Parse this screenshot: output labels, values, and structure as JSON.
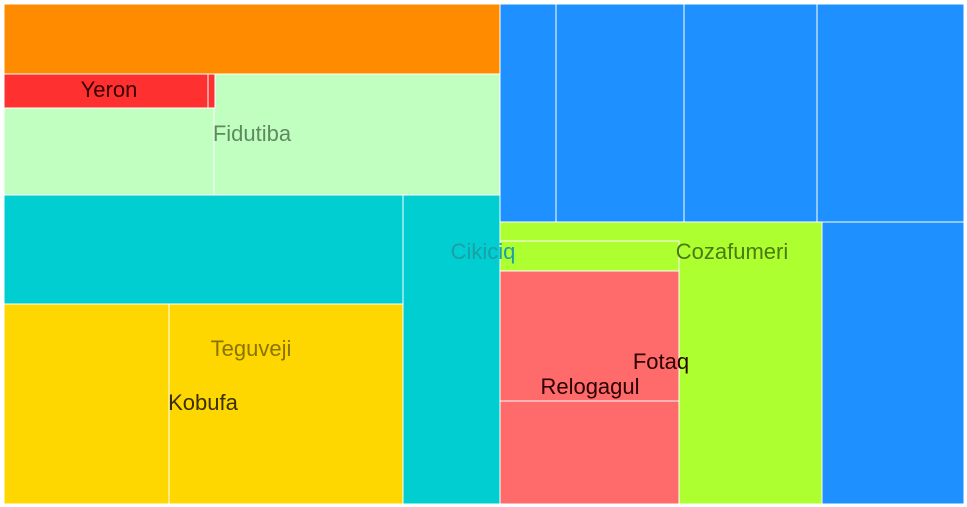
{
  "chart_data": {
    "type": "treemap",
    "groups": [
      {
        "label": "",
        "color": "#ff8c00",
        "value": 34,
        "children": []
      },
      {
        "label": "Fidutiba",
        "color": "#c1ffc1",
        "label_color": "#5f8a5f",
        "value": 59,
        "children": [
          {
            "label": "Yeron",
            "color": "#ff3030",
            "label_color": "#3a0000",
            "value": 7
          },
          {
            "label": "",
            "color": "#ff3030",
            "value": 0.2
          }
        ]
      },
      {
        "label": "Cikiciq",
        "color": "#00ced1",
        "label_color": "#1e9fa8",
        "value": 75,
        "children": []
      },
      {
        "label": "Teguveji",
        "color": "#ffd700",
        "label_color": "#8a7300",
        "value": 96,
        "children": [
          {
            "label": "Kobufa",
            "color": "#ffd700",
            "label_color": "#3a3000",
            "value": 65
          }
        ]
      },
      {
        "label": "",
        "color": "#1e90ff",
        "value": 150,
        "children": []
      },
      {
        "label": "Cozafumeri",
        "color": "#adff2f",
        "label_color": "#4a7a10",
        "value": 66,
        "children": [
          {
            "label": "Fotaq",
            "color": "#ff6a6a",
            "label_color": "#2a0000",
            "value": 20
          },
          {
            "label": "Relogagul",
            "color": "#ff6a6a",
            "label_color": "#2a0000",
            "value": 17
          }
        ]
      }
    ]
  }
}
